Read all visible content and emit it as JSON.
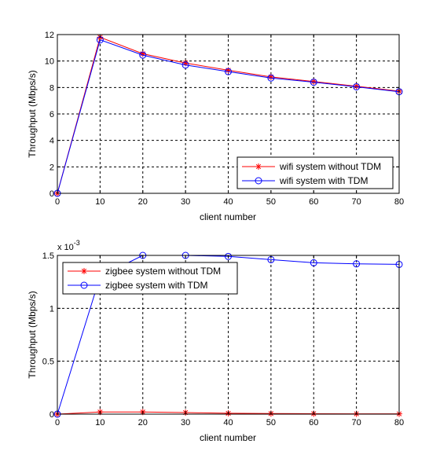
{
  "chart_data": [
    {
      "type": "line",
      "title": "",
      "xlabel": "client number",
      "ylabel": "Throughput (Mbps/s)",
      "x": [
        0,
        10,
        20,
        30,
        40,
        50,
        60,
        70,
        80
      ],
      "xlim": [
        0,
        80
      ],
      "ylim": [
        0,
        12
      ],
      "xticks": [
        "0",
        "10",
        "20",
        "30",
        "40",
        "50",
        "60",
        "70",
        "80"
      ],
      "yticks": [
        "0",
        "2",
        "4",
        "6",
        "8",
        "10",
        "12"
      ],
      "grid": true,
      "legend_position": "bottom-right",
      "series": [
        {
          "name": "wifi system without TDM",
          "color": "#ff0000",
          "marker": "star",
          "values": [
            0,
            11.8,
            10.55,
            9.85,
            9.3,
            8.8,
            8.45,
            8.1,
            7.72
          ]
        },
        {
          "name": "wifi system with TDM",
          "color": "#0000ff",
          "marker": "circle",
          "values": [
            0,
            11.6,
            10.45,
            9.7,
            9.2,
            8.72,
            8.4,
            8.05,
            7.68
          ]
        }
      ]
    },
    {
      "type": "line",
      "title": "",
      "xlabel": "client number",
      "ylabel": "Throughput (Mbps/s)",
      "exponent_base": "x 10",
      "exponent_power": "-3",
      "x": [
        0,
        10,
        20,
        30,
        40,
        50,
        60,
        70,
        80
      ],
      "xlim": [
        0,
        80
      ],
      "ylim": [
        0,
        1.5
      ],
      "xticks": [
        "0",
        "10",
        "20",
        "30",
        "40",
        "50",
        "60",
        "70",
        "80"
      ],
      "yticks": [
        "0",
        "0.5",
        "1",
        "1.5"
      ],
      "grid": true,
      "legend_position": "top-left",
      "series": [
        {
          "name": "zigbee system without TDM",
          "color": "#ff0000",
          "marker": "star",
          "values": [
            0,
            0.02,
            0.02,
            0.015,
            0.008,
            0.005,
            0.004,
            0.003,
            0.003
          ]
        },
        {
          "name": "zigbee system with TDM",
          "color": "#0000ff",
          "marker": "circle",
          "values": [
            0,
            1.3,
            1.5,
            1.5,
            1.49,
            1.46,
            1.43,
            1.42,
            1.415
          ]
        }
      ]
    }
  ]
}
